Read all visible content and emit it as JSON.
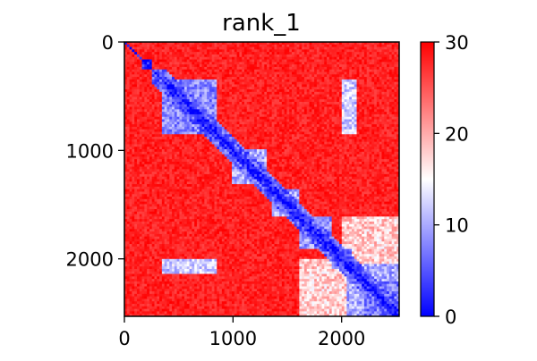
{
  "chart_data": {
    "type": "heatmap",
    "title": "rank_1",
    "xlabel": "",
    "ylabel": "",
    "x_range": [
      0,
      2530
    ],
    "y_range": [
      0,
      2530
    ],
    "x_ticks": [
      0,
      1000,
      2000
    ],
    "y_ticks": [
      0,
      1000,
      2000
    ],
    "y_inverted": true,
    "colormap": "bwr",
    "colors": {
      "low": "#0000ff",
      "mid": "#ffffff",
      "high": "#ff0000"
    },
    "colorbar": {
      "range": [
        0,
        30
      ],
      "ticks": [
        0,
        10,
        20,
        30
      ],
      "placement": "right"
    },
    "background_value": 30,
    "structures": [
      {
        "name": "diagonal",
        "kind": "diagonal",
        "value": 0
      },
      {
        "name": "block-a",
        "kind": "block",
        "start": 150,
        "end": 260,
        "value": 2
      },
      {
        "name": "block-b",
        "kind": "block",
        "start": 350,
        "end": 850,
        "value": 8
      },
      {
        "name": "band-1",
        "kind": "band",
        "start": 250,
        "end": 2530,
        "width": 130,
        "value": 6
      },
      {
        "name": "band-2",
        "kind": "band",
        "start": 400,
        "end": 2530,
        "width": 60,
        "value": 2
      },
      {
        "name": "block-c",
        "kind": "block",
        "start": 1000,
        "end": 1300,
        "value": 10
      },
      {
        "name": "block-d",
        "kind": "block",
        "start": 1350,
        "end": 1600,
        "value": 10
      },
      {
        "name": "block-e",
        "kind": "block",
        "start": 1600,
        "end": 1900,
        "value": 9
      },
      {
        "name": "block-f",
        "kind": "block",
        "start": 1900,
        "end": 2100,
        "value": 8
      },
      {
        "name": "block-g",
        "kind": "block",
        "start": 2050,
        "end": 2530,
        "value": 10
      },
      {
        "name": "block-h",
        "kind": "block",
        "start": 2200,
        "end": 2530,
        "value": 7
      },
      {
        "name": "offdiag-1",
        "kind": "offdiag",
        "rows": [
          350,
          850
        ],
        "cols": [
          2000,
          2150
        ],
        "value": 12
      },
      {
        "name": "offdiag-2",
        "kind": "offdiag",
        "rows": [
          2000,
          2150
        ],
        "cols": [
          350,
          850
        ],
        "value": 12
      },
      {
        "name": "offdiag-3",
        "kind": "offdiag",
        "rows": [
          1600,
          2530
        ],
        "cols": [
          2000,
          2530
        ],
        "value": 18
      },
      {
        "name": "offdiag-4",
        "kind": "offdiag",
        "rows": [
          2000,
          2530
        ],
        "cols": [
          1600,
          2530
        ],
        "value": 18
      }
    ]
  }
}
